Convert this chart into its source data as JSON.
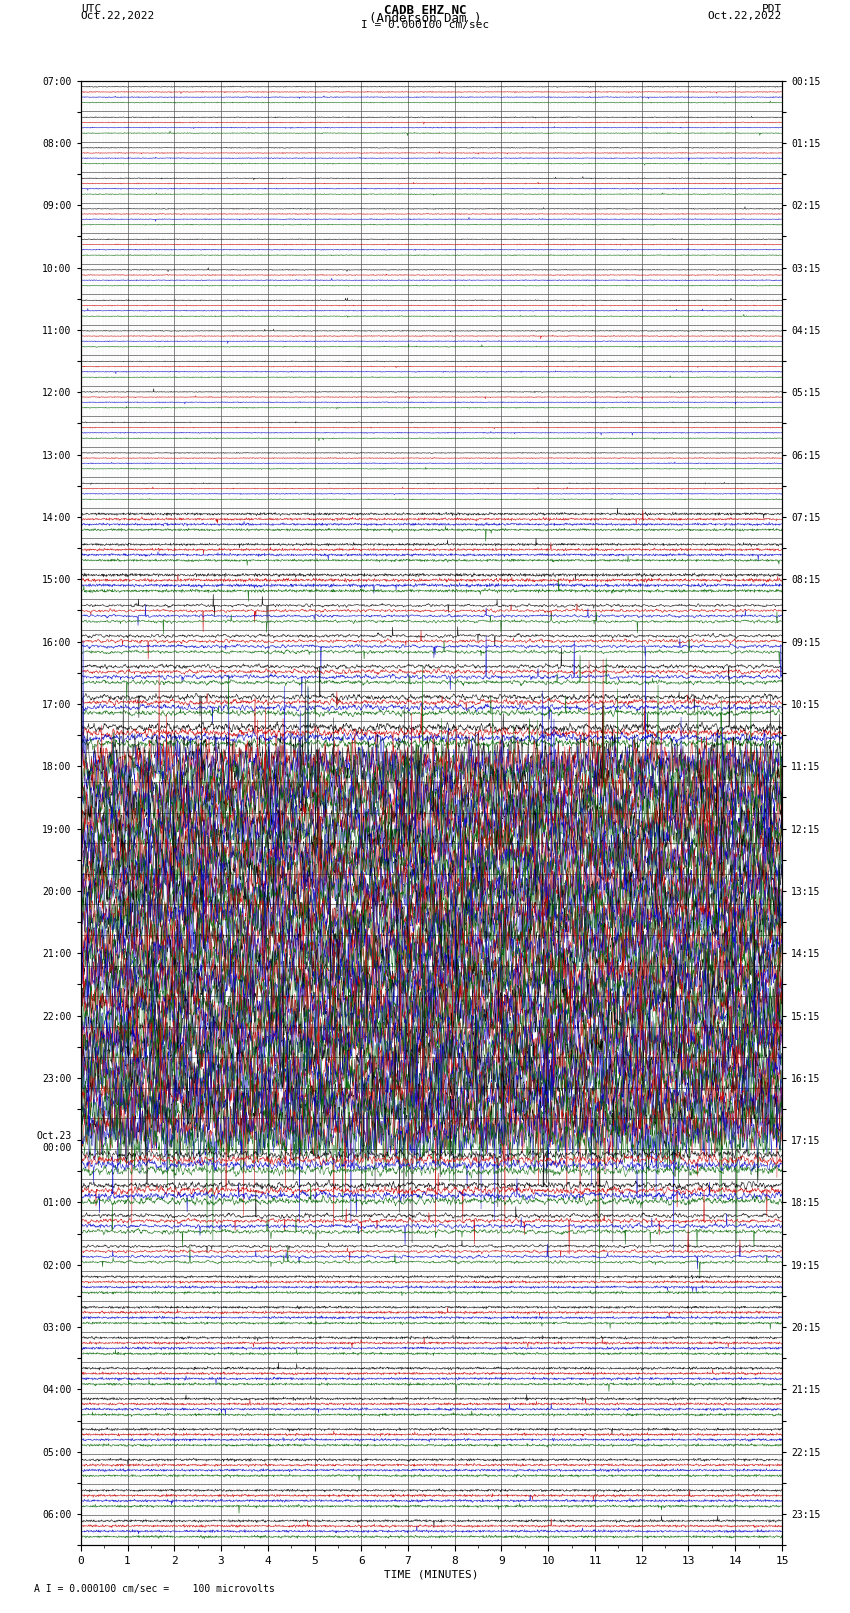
{
  "title_line1": "CADB EHZ NC",
  "title_line2": "(Anderson Dam )",
  "scale_label": "I = 0.000100 cm/sec",
  "utc_label": "UTC",
  "utc_date": "Oct.22,2022",
  "pdt_label": "PDT",
  "pdt_date": "Oct.22,2022",
  "xlabel": "TIME (MINUTES)",
  "footer": "A I = 0.000100 cm/sec =    100 microvolts",
  "left_ytick_labels": [
    "07:00",
    "",
    "08:00",
    "",
    "09:00",
    "",
    "10:00",
    "",
    "11:00",
    "",
    "12:00",
    "",
    "13:00",
    "",
    "14:00",
    "",
    "15:00",
    "",
    "16:00",
    "",
    "17:00",
    "",
    "18:00",
    "",
    "19:00",
    "",
    "20:00",
    "",
    "21:00",
    "",
    "22:00",
    "",
    "23:00",
    "",
    "Oct.23\n00:00",
    "",
    "01:00",
    "",
    "02:00",
    "",
    "03:00",
    "",
    "04:00",
    "",
    "05:00",
    "",
    "06:00",
    ""
  ],
  "right_ytick_labels": [
    "00:15",
    "",
    "01:15",
    "",
    "02:15",
    "",
    "03:15",
    "",
    "04:15",
    "",
    "05:15",
    "",
    "06:15",
    "",
    "07:15",
    "",
    "08:15",
    "",
    "09:15",
    "",
    "10:15",
    "",
    "11:15",
    "",
    "12:15",
    "",
    "13:15",
    "",
    "14:15",
    "",
    "15:15",
    "",
    "16:15",
    "",
    "17:15",
    "",
    "18:15",
    "",
    "19:15",
    "",
    "20:15",
    "",
    "21:15",
    "",
    "22:15",
    "",
    "23:15",
    ""
  ],
  "n_rows": 48,
  "xmin": 0,
  "xmax": 15,
  "colors": {
    "black": "#000000",
    "red": "#cc0000",
    "blue": "#0000cc",
    "green": "#006600",
    "grid_major": "#555555",
    "grid_minor": "#aaaaaa",
    "background": "#ffffff"
  },
  "row_amplitudes": [
    0.02,
    0.02,
    0.02,
    0.02,
    0.02,
    0.02,
    0.02,
    0.02,
    0.02,
    0.02,
    0.02,
    0.02,
    0.02,
    0.02,
    0.06,
    0.06,
    0.08,
    0.1,
    0.12,
    0.15,
    0.2,
    0.3,
    0.8,
    0.9,
    0.9,
    0.9,
    0.9,
    0.9,
    0.9,
    0.9,
    0.9,
    0.9,
    0.9,
    0.9,
    0.9,
    0.35,
    0.25,
    0.15,
    0.1,
    0.06,
    0.06,
    0.06,
    0.06,
    0.06,
    0.06,
    0.06,
    0.06,
    0.06
  ]
}
